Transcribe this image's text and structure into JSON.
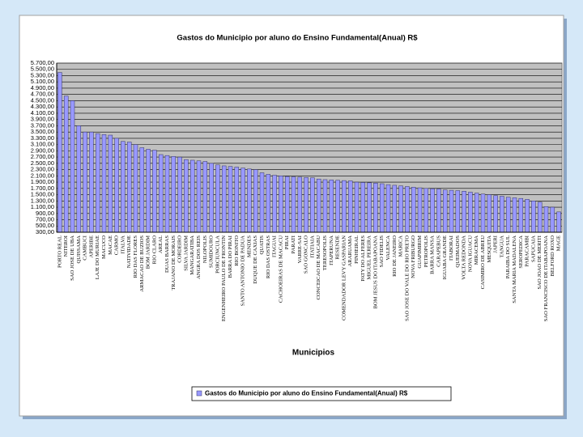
{
  "chart_data": {
    "type": "bar",
    "title": "Gastos do Municipio por aluno do Ensino Fundamental(Anual) R$",
    "x_label": "Municipios",
    "categories": [
      "PORTO REAL",
      "NITEROI",
      "SAO JOSE DE UBA",
      "QUISSAMA",
      "CAMBUCI",
      "APERIBE",
      "LAJE DO MURIAE",
      "MACUCO",
      "MACAE",
      "CARMO",
      "ITALVA",
      "NATIVIDADE",
      "RIO DAS FLORES",
      "ARMACAO DE BUZIOS",
      "BOM JARDIM",
      "RIO CLARO",
      "AREAL",
      "DUAS BARRAS",
      "TRAJANO DE MORAIS",
      "CORDEIRO",
      "SILVA JARDIM",
      "MANGARATIBA",
      "ANGRA DOS REIS",
      "NILOPOLIS",
      "SUMIDOURO",
      "PORCIUNCULA",
      "ENGENHEIRO PAULO DE FRONTIN",
      "BARRA DO PIRAI",
      "RIO BONITO",
      "SANTO ANTONIO DE PADUA",
      "MENDES",
      "DUQUE DE CAXIAS",
      "QUATIS",
      "RIO DAS OSTRAS",
      "ITAGUAI",
      "CACHOEIRAS DE MACACU",
      "PIRAI",
      "PARATI",
      "VARRE-SAI",
      "SAO GONCALO",
      "ITATIAIA",
      "CONCEICAO DE MACABU",
      "TERESOPOLIS",
      "ITAPERUNA",
      "RESENDE",
      "COMENDADOR LEVY GASPARIAN",
      "ARARUAMA",
      "PINHEIRAL",
      "PATY DO ALFERES",
      "MIGUEL PEREIRA",
      "BOM JESUS DO ITABAPOANA",
      "SAO FIDELIS",
      "VALENCA",
      "RIO DE JANEIRO",
      "MARICA",
      "SAO JOSE DO VALE DO RIO PRETO",
      "NOVA FRIBURGO",
      "GUAPIMIRIM",
      "PETROPOLIS",
      "BARRA MANSA",
      "CARAPEBUS",
      "IGUABA GRANDE",
      "ITABORAI",
      "QUEIMADOS",
      "VOLTA REDONDA",
      "NOVA IGUACU",
      "MIRACEMA",
      "CASIMIRO DE ABREU",
      "MESQUITA",
      "JAPERI",
      "TANGUA",
      "PARAIBA DO SUL",
      "SANTA MARIA MADALENA",
      "SEROPEDICA",
      "PARACAMBI",
      "SAPUCAIA",
      "SAO JOAO DE MERITI",
      "SAO FRANCISCO DE ITABAPOANA",
      "BELFORD ROXO",
      "MAGE"
    ],
    "series": [
      {
        "name": "Gastos do Municipio por aluno do Ensino Fundamental(Anual) R$",
        "color": "#9999ff",
        "values": [
          5400,
          4650,
          4500,
          3700,
          3500,
          3500,
          3450,
          3420,
          3400,
          3300,
          3200,
          3180,
          3100,
          3000,
          2950,
          2920,
          2780,
          2750,
          2720,
          2700,
          2620,
          2600,
          2580,
          2560,
          2500,
          2450,
          2420,
          2400,
          2380,
          2350,
          2320,
          2300,
          2200,
          2150,
          2120,
          2100,
          2080,
          2070,
          2060,
          2050,
          2040,
          2000,
          1980,
          1970,
          1960,
          1950,
          1940,
          1900,
          1890,
          1880,
          1870,
          1850,
          1820,
          1800,
          1780,
          1760,
          1740,
          1720,
          1700,
          1690,
          1680,
          1650,
          1640,
          1630,
          1610,
          1580,
          1550,
          1520,
          1500,
          1470,
          1450,
          1420,
          1400,
          1380,
          1350,
          1300,
          1260,
          1120,
          1100,
          950
        ]
      }
    ],
    "ylim": [
      300,
      5700
    ],
    "yticks": [
      {
        "value": 300,
        "label": "300,00"
      },
      {
        "value": 500,
        "label": "500,00"
      },
      {
        "value": 700,
        "label": "700,00"
      },
      {
        "value": 900,
        "label": "900,00"
      },
      {
        "value": 1100,
        "label": "1.100,00"
      },
      {
        "value": 1300,
        "label": "1.300,00"
      },
      {
        "value": 1500,
        "label": "1.500,00"
      },
      {
        "value": 1700,
        "label": "1.700,00"
      },
      {
        "value": 1900,
        "label": "1.900,00"
      },
      {
        "value": 2100,
        "label": "2.100,00"
      },
      {
        "value": 2300,
        "label": "2.300,00"
      },
      {
        "value": 2500,
        "label": "2.500,00"
      },
      {
        "value": 2700,
        "label": "2.700,00"
      },
      {
        "value": 2900,
        "label": "2.900,00"
      },
      {
        "value": 3100,
        "label": "3.100,00"
      },
      {
        "value": 3300,
        "label": "3.300,00"
      },
      {
        "value": 3500,
        "label": "3.500,00"
      },
      {
        "value": 3700,
        "label": "3.700,00"
      },
      {
        "value": 3900,
        "label": "3.900,00"
      },
      {
        "value": 4100,
        "label": "4.100,00"
      },
      {
        "value": 4300,
        "label": "4.300,00"
      },
      {
        "value": 4500,
        "label": "4.500,00"
      },
      {
        "value": 4700,
        "label": "4.700,00"
      },
      {
        "value": 4900,
        "label": "4.900,00"
      },
      {
        "value": 5100,
        "label": "5.100,00"
      },
      {
        "value": 5300,
        "label": "5.300,00"
      },
      {
        "value": 5500,
        "label": "5.500,00"
      },
      {
        "value": 5700,
        "label": "5.700,00"
      }
    ],
    "grid": true,
    "legend": "bottom"
  }
}
